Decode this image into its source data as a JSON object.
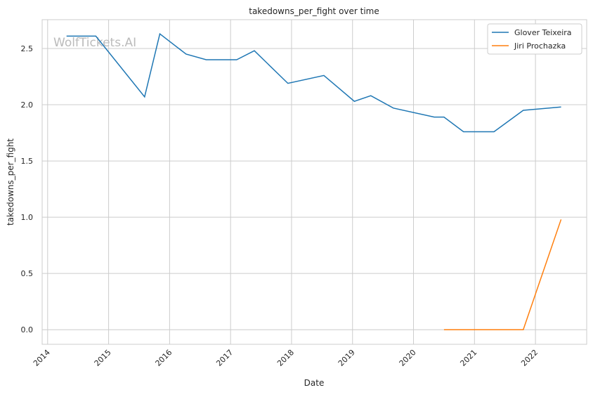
{
  "chart_data": {
    "type": "line",
    "title": "takedowns_per_fight over time",
    "xlabel": "Date",
    "ylabel": "takedowns_per_fight",
    "watermark": "WolfTickets.AI",
    "xlim": [
      2013.91,
      2022.84
    ],
    "ylim": [
      -0.13,
      2.756
    ],
    "xticks": [
      2014,
      2015,
      2016,
      2017,
      2018,
      2019,
      2020,
      2021,
      2022
    ],
    "xtick_labels": [
      "2014",
      "2015",
      "2016",
      "2017",
      "2018",
      "2019",
      "2020",
      "2021",
      "2022"
    ],
    "yticks": [
      0,
      0.5,
      1,
      1.5,
      2,
      2.5
    ],
    "ytick_labels": [
      "0.0",
      "0.5",
      "1.0",
      "1.5",
      "2.0",
      "2.5"
    ],
    "grid": true,
    "legend_position": "top-right",
    "series": [
      {
        "name": "Glover Teixeira",
        "color": "#1f77b4",
        "x": [
          2014.31,
          2014.79,
          2015.59,
          2015.84,
          2016.27,
          2016.6,
          2017.1,
          2017.39,
          2017.94,
          2018.53,
          2019.03,
          2019.3,
          2019.67,
          2020.34,
          2020.5,
          2020.82,
          2021.32,
          2021.8,
          2022.42
        ],
        "y": [
          2.61,
          2.61,
          2.07,
          2.63,
          2.45,
          2.4,
          2.4,
          2.48,
          2.19,
          2.26,
          2.03,
          2.08,
          1.97,
          1.89,
          1.89,
          1.76,
          1.76,
          1.95,
          1.98
        ]
      },
      {
        "name": "Jiri Prochazka",
        "color": "#ff7f0e",
        "x": [
          2020.5,
          2021.8,
          2022.42
        ],
        "y": [
          0,
          0,
          0.98
        ]
      }
    ]
  }
}
